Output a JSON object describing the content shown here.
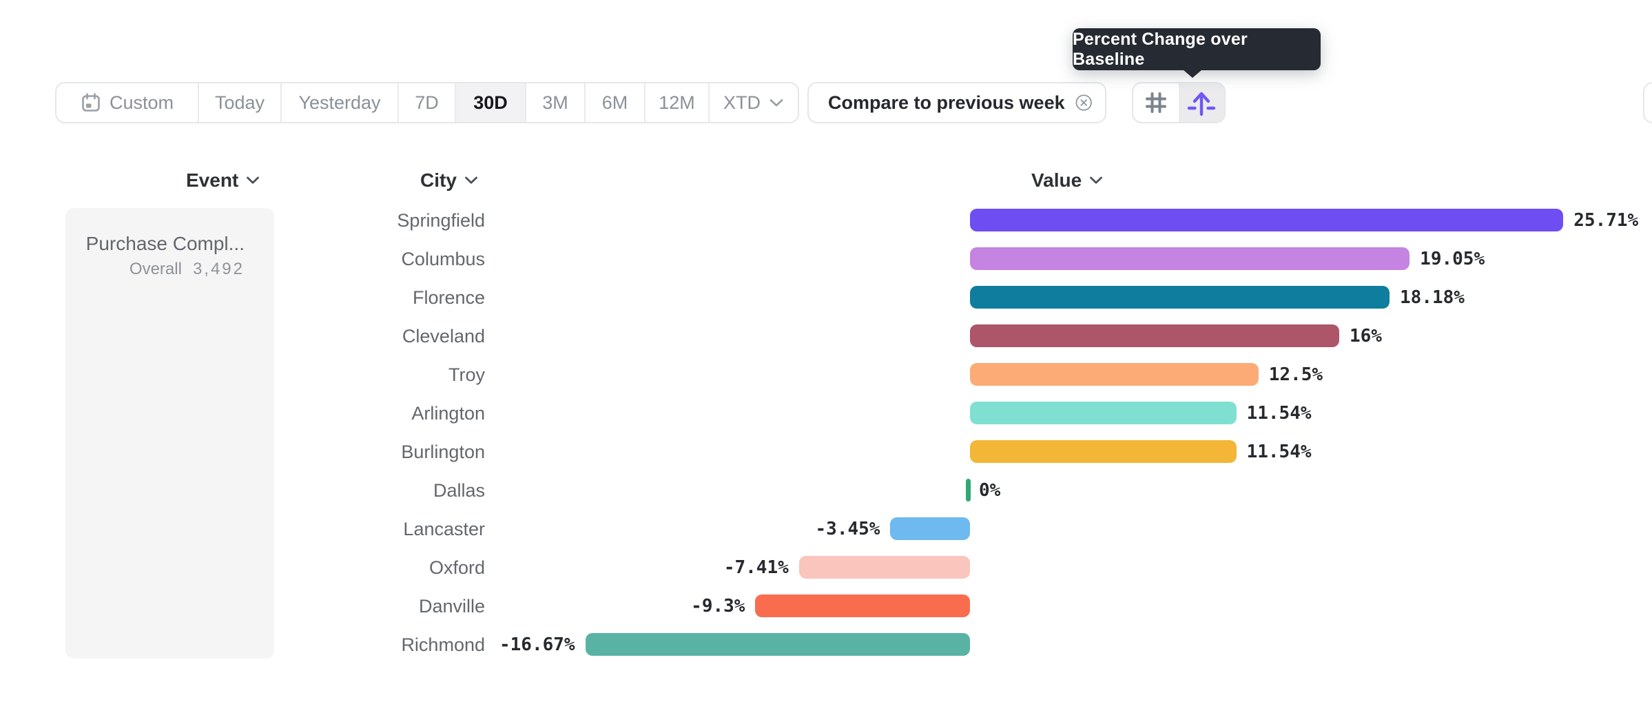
{
  "tooltip": {
    "text": "Percent Change over Baseline"
  },
  "toolbar": {
    "date_ranges": [
      {
        "label": "Custom",
        "icon": "calendar-icon",
        "selected": false
      },
      {
        "label": "Today",
        "selected": false
      },
      {
        "label": "Yesterday",
        "selected": false
      },
      {
        "label": "7D",
        "selected": false
      },
      {
        "label": "30D",
        "selected": true
      },
      {
        "label": "3M",
        "selected": false
      },
      {
        "label": "6M",
        "selected": false
      },
      {
        "label": "12M",
        "selected": false
      },
      {
        "label": "XTD",
        "selected": false,
        "chevron": true
      }
    ],
    "compare_chip": {
      "label": "Compare to previous week",
      "remove_icon": "circle-x-icon"
    },
    "view_toggle": [
      {
        "icon": "grid-hash-icon",
        "selected": false
      },
      {
        "icon": "baseline-arrow-icon",
        "selected": true,
        "accent": "#7156f4"
      }
    ]
  },
  "table_headers": {
    "event": "Event",
    "city": "City",
    "value": "Value"
  },
  "event_card": {
    "title": "Purchase Compl...",
    "metric_label": "Overall",
    "metric_value": "3,492"
  },
  "chart_data": {
    "type": "bar",
    "orientation": "horizontal",
    "title": "Percent Change over Baseline",
    "value_format": "percent",
    "baseline": 0,
    "grid": false,
    "legend": false,
    "xlim": [
      -16.67,
      25.71
    ],
    "categories": [
      "Springfield",
      "Columbus",
      "Florence",
      "Cleveland",
      "Troy",
      "Arlington",
      "Burlington",
      "Dallas",
      "Lancaster",
      "Oxford",
      "Danville",
      "Richmond"
    ],
    "values": [
      25.71,
      19.05,
      18.18,
      16,
      12.5,
      11.54,
      11.54,
      0,
      -3.45,
      -7.41,
      -9.3,
      -16.67
    ],
    "labels": [
      "25.71%",
      "19.05%",
      "18.18%",
      "16%",
      "12.5%",
      "11.54%",
      "11.54%",
      "0%",
      "-3.45%",
      "-7.41%",
      "-9.3%",
      "-16.67%"
    ],
    "colors": [
      "#6e4df2",
      "#c583e2",
      "#0f7d9d",
      "#ad5569",
      "#fcab76",
      "#7fe0d2",
      "#f3b637",
      "#2fa873",
      "#6db9f0",
      "#f9c5bd",
      "#f96d4e",
      "#58b3a5"
    ]
  }
}
